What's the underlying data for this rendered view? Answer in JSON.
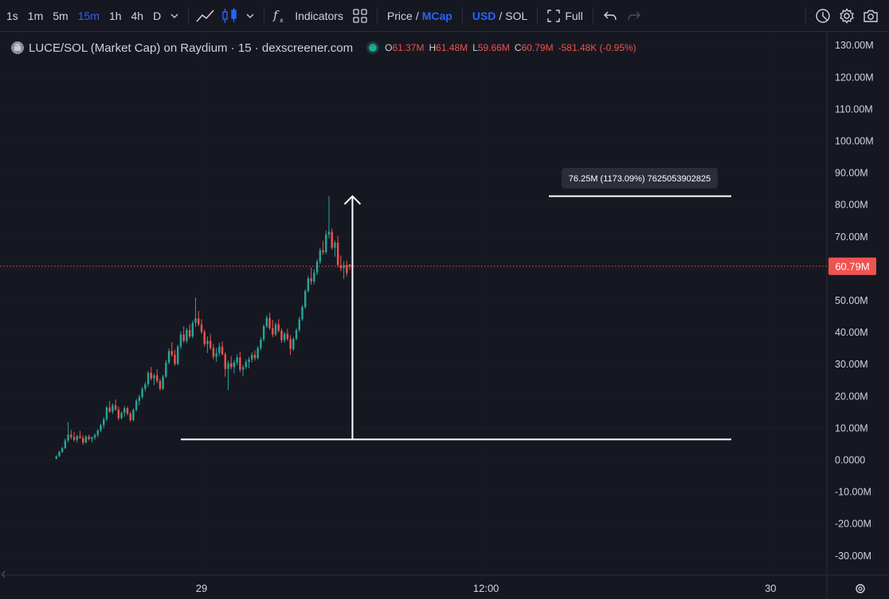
{
  "toolbar": {
    "intervals": [
      "1s",
      "1m",
      "5m",
      "15m",
      "1h",
      "4h",
      "D"
    ],
    "active_interval": "15m",
    "indicators_label": "Indicators",
    "price_label": "Price",
    "slash1": "/",
    "mcap_label": "MCap",
    "usd_label": "USD",
    "slash2": "/",
    "sol_label": "SOL",
    "full_label": "Full"
  },
  "legend": {
    "title": "LUCE/SOL (Market Cap) on Raydium · 15 · dexscreener.com",
    "o_key": "O",
    "o_val": "61.37M",
    "h_key": "H",
    "h_val": "61.48M",
    "l_key": "L",
    "l_val": "59.66M",
    "c_key": "C",
    "c_val": "60.79M",
    "change": "-581.48K (-0.95%)"
  },
  "colors": {
    "up": "#26a69a",
    "down": "#ef5350",
    "background": "#161821",
    "grid": "#2a2e39",
    "accent": "#2962ff",
    "price_line": "#ef5350"
  },
  "chart_data": {
    "type": "candlestick",
    "title": "LUCE/SOL (Market Cap) on Raydium · 15 · dexscreener.com",
    "y_unit": "USD market cap",
    "ylim": [
      -35000000,
      135000000
    ],
    "y_ticks": [
      "130.00M",
      "120.00M",
      "110.00M",
      "100.00M",
      "90.00M",
      "80.00M",
      "70.00M",
      "60.00M",
      "50.00M",
      "40.00M",
      "30.00M",
      "20.00M",
      "10.00M",
      "0.0000",
      "-10.00M",
      "-20.00M",
      "-30.00M"
    ],
    "y_tick_values": [
      130,
      120,
      110,
      100,
      90,
      80,
      70,
      60,
      50,
      40,
      30,
      20,
      10,
      0,
      -10,
      -20,
      -30
    ],
    "x_ticks": [
      "29",
      "12:00",
      "30"
    ],
    "x_tick_index": [
      49,
      145,
      241
    ],
    "x_start_index": -19,
    "x_end_index": 260,
    "current_price": 60.79,
    "current_price_label": "60.79M",
    "measure": {
      "label": "76.25M (1173.09%) 7625053902825",
      "from_value": 6.5,
      "to_value": 82.75,
      "from_index": 42,
      "to_index": 125,
      "start_index": 42,
      "end_index": 101
    },
    "candles_mcap_millions_ohlc": [
      [
        0.5,
        1.5,
        0.2,
        1.2
      ],
      [
        1.2,
        3.0,
        1.0,
        2.6
      ],
      [
        2.6,
        4.2,
        2.2,
        3.8
      ],
      [
        3.8,
        6.8,
        3.5,
        6.2
      ],
      [
        6.2,
        12.0,
        5.5,
        8.0
      ],
      [
        8.0,
        9.5,
        6.5,
        7.2
      ],
      [
        7.2,
        8.8,
        5.8,
        6.4
      ],
      [
        6.4,
        8.0,
        5.5,
        7.5
      ],
      [
        7.5,
        9.2,
        6.8,
        6.9
      ],
      [
        6.9,
        7.8,
        4.8,
        5.5
      ],
      [
        5.5,
        7.8,
        5.2,
        7.4
      ],
      [
        7.4,
        8.0,
        6.2,
        6.6
      ],
      [
        6.6,
        7.5,
        5.6,
        7.1
      ],
      [
        7.1,
        8.4,
        6.4,
        7.9
      ],
      [
        7.9,
        9.8,
        7.2,
        9.3
      ],
      [
        9.3,
        11.5,
        8.8,
        11.0
      ],
      [
        11.0,
        13.5,
        10.0,
        12.8
      ],
      [
        12.8,
        17.0,
        12.2,
        16.5
      ],
      [
        16.5,
        18.5,
        14.8,
        15.2
      ],
      [
        15.2,
        17.8,
        14.5,
        17.2
      ],
      [
        17.2,
        19.0,
        15.5,
        15.9
      ],
      [
        15.9,
        16.8,
        12.5,
        13.2
      ],
      [
        13.2,
        15.4,
        12.8,
        14.8
      ],
      [
        14.8,
        17.0,
        13.6,
        16.3
      ],
      [
        16.3,
        16.8,
        14.0,
        14.6
      ],
      [
        14.6,
        15.2,
        12.0,
        12.6
      ],
      [
        12.6,
        16.2,
        12.2,
        15.8
      ],
      [
        15.8,
        19.2,
        15.2,
        18.6
      ],
      [
        18.6,
        20.5,
        17.2,
        19.8
      ],
      [
        19.8,
        23.0,
        19.2,
        22.4
      ],
      [
        22.4,
        24.5,
        21.5,
        23.8
      ],
      [
        23.8,
        28.0,
        23.0,
        27.4
      ],
      [
        27.4,
        29.2,
        25.0,
        25.6
      ],
      [
        25.6,
        27.2,
        23.6,
        26.6
      ],
      [
        26.6,
        28.5,
        24.2,
        24.8
      ],
      [
        24.8,
        25.6,
        21.8,
        22.4
      ],
      [
        22.4,
        26.8,
        22.0,
        26.2
      ],
      [
        26.2,
        31.5,
        25.8,
        30.6
      ],
      [
        30.6,
        35.0,
        30.0,
        34.2
      ],
      [
        34.2,
        37.0,
        32.4,
        33.0
      ],
      [
        33.0,
        34.6,
        29.6,
        30.2
      ],
      [
        30.2,
        36.2,
        29.8,
        35.6
      ],
      [
        35.6,
        40.5,
        34.8,
        39.4
      ],
      [
        39.4,
        42.0,
        36.8,
        37.4
      ],
      [
        37.4,
        41.5,
        36.6,
        40.8
      ],
      [
        40.8,
        42.6,
        38.2,
        38.8
      ],
      [
        38.8,
        43.8,
        38.2,
        43.0
      ],
      [
        43.0,
        51.0,
        41.8,
        44.5
      ],
      [
        44.5,
        46.8,
        42.0,
        42.6
      ],
      [
        42.6,
        44.2,
        39.6,
        40.2
      ],
      [
        40.2,
        41.0,
        35.6,
        36.4
      ],
      [
        36.4,
        38.8,
        33.6,
        37.4
      ],
      [
        37.4,
        39.6,
        34.6,
        35.2
      ],
      [
        35.2,
        36.4,
        31.6,
        32.4
      ],
      [
        32.4,
        35.2,
        30.8,
        33.6
      ],
      [
        33.6,
        36.8,
        32.6,
        35.6
      ],
      [
        35.6,
        37.2,
        32.8,
        33.2
      ],
      [
        33.2,
        33.8,
        26.2,
        28.6
      ],
      [
        28.6,
        31.2,
        22.0,
        30.4
      ],
      [
        30.4,
        32.6,
        28.4,
        29.2
      ],
      [
        29.2,
        31.4,
        27.2,
        30.6
      ],
      [
        30.6,
        33.2,
        29.8,
        32.2
      ],
      [
        32.2,
        34.0,
        27.6,
        28.4
      ],
      [
        28.4,
        29.8,
        26.4,
        29.2
      ],
      [
        29.2,
        31.6,
        28.6,
        30.8
      ],
      [
        30.8,
        32.4,
        28.8,
        31.6
      ],
      [
        31.6,
        33.8,
        30.6,
        33.0
      ],
      [
        33.0,
        34.4,
        31.2,
        32.0
      ],
      [
        32.0,
        35.8,
        31.6,
        35.2
      ],
      [
        35.2,
        38.6,
        34.4,
        37.8
      ],
      [
        37.8,
        42.6,
        37.2,
        42.0
      ],
      [
        42.0,
        45.4,
        41.4,
        44.6
      ],
      [
        44.6,
        46.2,
        40.8,
        41.4
      ],
      [
        41.4,
        44.0,
        38.6,
        39.4
      ],
      [
        39.4,
        43.2,
        38.8,
        42.6
      ],
      [
        42.6,
        44.2,
        40.0,
        40.6
      ],
      [
        40.6,
        41.4,
        36.8,
        37.6
      ],
      [
        37.6,
        40.2,
        36.8,
        39.6
      ],
      [
        39.6,
        41.2,
        37.4,
        38.0
      ],
      [
        38.0,
        39.2,
        33.0,
        34.8
      ],
      [
        34.8,
        38.6,
        34.2,
        38.0
      ],
      [
        38.0,
        41.4,
        37.6,
        40.8
      ],
      [
        40.8,
        45.0,
        40.2,
        44.2
      ],
      [
        44.2,
        48.6,
        43.6,
        48.0
      ],
      [
        48.0,
        53.6,
        47.4,
        53.0
      ],
      [
        53.0,
        57.8,
        52.6,
        57.0
      ],
      [
        57.0,
        60.4,
        55.0,
        56.0
      ],
      [
        56.0,
        59.8,
        55.2,
        58.8
      ],
      [
        58.8,
        63.0,
        58.0,
        62.2
      ],
      [
        62.2,
        66.6,
        61.4,
        65.8
      ],
      [
        65.8,
        68.8,
        64.4,
        65.2
      ],
      [
        65.2,
        72.0,
        64.6,
        70.8
      ],
      [
        70.8,
        82.75,
        69.6,
        71.6
      ],
      [
        71.6,
        72.6,
        66.0,
        66.6
      ],
      [
        66.6,
        68.8,
        63.8,
        68.2
      ],
      [
        68.2,
        70.4,
        60.4,
        61.2
      ],
      [
        61.2,
        64.2,
        59.2,
        60.2
      ],
      [
        60.2,
        62.4,
        56.8,
        61.2
      ],
      [
        61.2,
        62.6,
        57.6,
        58.6
      ],
      [
        61.37,
        61.48,
        59.66,
        60.79
      ]
    ]
  }
}
